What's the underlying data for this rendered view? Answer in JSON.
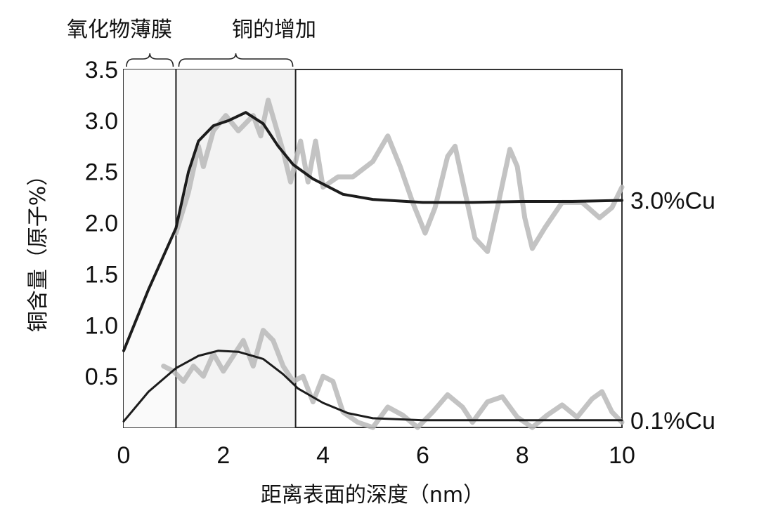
{
  "chart_data": {
    "type": "line",
    "title": "",
    "xlabel": "距离表面的深度（nm）",
    "ylabel": "铜含量（原子%）",
    "xlim": [
      0,
      10
    ],
    "ylim": [
      0,
      3.5
    ],
    "x_ticks": [
      "0",
      "2",
      "4",
      "6",
      "8",
      "10"
    ],
    "y_ticks": [
      "0.5",
      "1.0",
      "1.5",
      "2.0",
      "2.5",
      "3.0",
      "3.5"
    ],
    "grid": false,
    "regions": [
      {
        "label": "氧化物薄膜",
        "x_start": 0,
        "x_end": 1.05
      },
      {
        "label": "铜的增加",
        "x_start": 1.05,
        "x_end": 3.45
      }
    ],
    "series": [
      {
        "name": "3.0%Cu",
        "style": "fit",
        "points": [
          [
            0,
            0.75
          ],
          [
            0.5,
            1.35
          ],
          [
            1.05,
            1.95
          ],
          [
            1.3,
            2.5
          ],
          [
            1.5,
            2.8
          ],
          [
            1.8,
            2.95
          ],
          [
            2.1,
            3.0
          ],
          [
            2.45,
            3.08
          ],
          [
            2.8,
            2.97
          ],
          [
            3.1,
            2.75
          ],
          [
            3.4,
            2.57
          ],
          [
            3.8,
            2.43
          ],
          [
            4.4,
            2.28
          ],
          [
            5,
            2.23
          ],
          [
            6,
            2.2
          ],
          [
            7,
            2.2
          ],
          [
            8,
            2.21
          ],
          [
            9,
            2.21
          ],
          [
            10,
            2.22
          ]
        ]
      },
      {
        "name": "3.0%Cu",
        "style": "measured",
        "points": [
          [
            1.05,
            1.9
          ],
          [
            1.3,
            2.3
          ],
          [
            1.5,
            2.75
          ],
          [
            1.6,
            2.55
          ],
          [
            1.8,
            2.9
          ],
          [
            2.05,
            3.05
          ],
          [
            2.3,
            2.9
          ],
          [
            2.6,
            3.05
          ],
          [
            2.75,
            2.85
          ],
          [
            2.9,
            3.2
          ],
          [
            3.05,
            2.95
          ],
          [
            3.2,
            2.7
          ],
          [
            3.35,
            2.4
          ],
          [
            3.55,
            2.8
          ],
          [
            3.7,
            2.4
          ],
          [
            3.85,
            2.8
          ],
          [
            4.0,
            2.35
          ],
          [
            4.3,
            2.45
          ],
          [
            4.6,
            2.45
          ],
          [
            5.0,
            2.6
          ],
          [
            5.3,
            2.85
          ],
          [
            5.55,
            2.55
          ],
          [
            5.8,
            2.2
          ],
          [
            6.05,
            1.9
          ],
          [
            6.25,
            2.15
          ],
          [
            6.5,
            2.65
          ],
          [
            6.65,
            2.75
          ],
          [
            6.85,
            2.3
          ],
          [
            7.05,
            1.85
          ],
          [
            7.3,
            1.72
          ],
          [
            7.5,
            2.15
          ],
          [
            7.75,
            2.72
          ],
          [
            7.9,
            2.55
          ],
          [
            8.05,
            2.05
          ],
          [
            8.2,
            1.75
          ],
          [
            8.45,
            1.95
          ],
          [
            8.8,
            2.2
          ],
          [
            9.2,
            2.2
          ],
          [
            9.55,
            2.05
          ],
          [
            9.8,
            2.15
          ],
          [
            10,
            2.35
          ]
        ]
      },
      {
        "name": "0.1%Cu",
        "style": "fit",
        "points": [
          [
            0,
            0.06
          ],
          [
            0.5,
            0.35
          ],
          [
            1.05,
            0.58
          ],
          [
            1.5,
            0.7
          ],
          [
            1.9,
            0.75
          ],
          [
            2.3,
            0.74
          ],
          [
            2.8,
            0.67
          ],
          [
            3.2,
            0.52
          ],
          [
            3.5,
            0.38
          ],
          [
            4.0,
            0.24
          ],
          [
            4.5,
            0.14
          ],
          [
            5.0,
            0.09
          ],
          [
            6,
            0.07
          ],
          [
            7,
            0.07
          ],
          [
            8,
            0.07
          ],
          [
            9,
            0.07
          ],
          [
            10,
            0.07
          ]
        ]
      },
      {
        "name": "0.1%Cu",
        "style": "measured",
        "points": [
          [
            0.8,
            0.6
          ],
          [
            1.0,
            0.55
          ],
          [
            1.2,
            0.45
          ],
          [
            1.4,
            0.6
          ],
          [
            1.6,
            0.5
          ],
          [
            1.8,
            0.72
          ],
          [
            2.0,
            0.55
          ],
          [
            2.2,
            0.7
          ],
          [
            2.4,
            0.85
          ],
          [
            2.6,
            0.6
          ],
          [
            2.8,
            0.95
          ],
          [
            3.0,
            0.85
          ],
          [
            3.2,
            0.6
          ],
          [
            3.4,
            0.45
          ],
          [
            3.6,
            0.5
          ],
          [
            3.8,
            0.25
          ],
          [
            4.0,
            0.5
          ],
          [
            4.2,
            0.45
          ],
          [
            4.4,
            0.15
          ],
          [
            4.7,
            0.05
          ],
          [
            5.0,
            0.0
          ],
          [
            5.3,
            0.2
          ],
          [
            5.6,
            0.12
          ],
          [
            5.9,
            0.0
          ],
          [
            6.2,
            0.15
          ],
          [
            6.5,
            0.32
          ],
          [
            6.8,
            0.2
          ],
          [
            7.0,
            0.05
          ],
          [
            7.3,
            0.25
          ],
          [
            7.6,
            0.3
          ],
          [
            7.9,
            0.1
          ],
          [
            8.2,
            0.0
          ],
          [
            8.5,
            0.12
          ],
          [
            8.8,
            0.22
          ],
          [
            9.1,
            0.1
          ],
          [
            9.4,
            0.28
          ],
          [
            9.6,
            0.35
          ],
          [
            9.8,
            0.15
          ],
          [
            10,
            0.05
          ]
        ]
      }
    ],
    "series_labels": [
      {
        "text": "3.0%Cu",
        "y": 2.22
      },
      {
        "text": "0.1%Cu",
        "y": 0.07
      }
    ]
  }
}
